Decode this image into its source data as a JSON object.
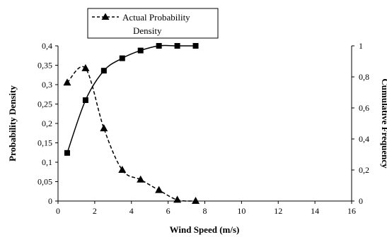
{
  "chart_data": {
    "type": "line",
    "xlabel": "Wind Speed (m/s)",
    "ylabel_left": "Probability  Density",
    "ylabel_right": "Cumulative Frequency",
    "x_ticks": [
      "0",
      "2",
      "4",
      "6",
      "8",
      "10",
      "12",
      "14",
      "16"
    ],
    "y_left_ticks": [
      "0",
      "0,05",
      "0,1",
      "0,15",
      "0,2",
      "0,25",
      "0,3",
      "0,35",
      "0,4"
    ],
    "y_right_ticks": [
      "0",
      "0,2",
      "0,4",
      "0,6",
      "0,8",
      "1"
    ],
    "xlim": [
      0,
      16
    ],
    "ylim_left": [
      0,
      0.4
    ],
    "ylim_right": [
      0,
      1
    ],
    "grid": false,
    "legend": {
      "position": "top-left",
      "entries": [
        "Actual Probability",
        "Density"
      ]
    },
    "series": [
      {
        "name": "Actual Probability Density",
        "axis": "left",
        "style": "dashed",
        "marker": "triangle",
        "color": "#000000",
        "x": [
          0.5,
          1.5,
          2.5,
          3.5,
          4.5,
          5.5,
          6.5,
          7.5
        ],
        "y": [
          0.305,
          0.342,
          0.187,
          0.08,
          0.055,
          0.028,
          0.003,
          0.0
        ]
      },
      {
        "axis": "right",
        "style": "solid",
        "marker": "square",
        "color": "#000000",
        "x": [
          0.5,
          1.5,
          2.5,
          3.5,
          4.5,
          5.5,
          6.5,
          7.5
        ],
        "y": [
          0.31,
          0.65,
          0.84,
          0.92,
          0.97,
          1.0,
          1.0,
          1.0
        ]
      }
    ]
  }
}
